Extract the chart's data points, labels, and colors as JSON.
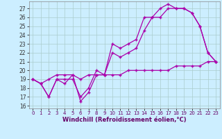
{
  "xlabel": "Windchill (Refroidissement éolien,°C)",
  "bg_color": "#cceeff",
  "grid_color": "#aacccc",
  "line_color": "#aa00aa",
  "xlim": [
    -0.5,
    23.5
  ],
  "ylim": [
    15.7,
    27.8
  ],
  "yticks": [
    16,
    17,
    18,
    19,
    20,
    21,
    22,
    23,
    24,
    25,
    26,
    27
  ],
  "xticks": [
    0,
    1,
    2,
    3,
    4,
    5,
    6,
    7,
    8,
    9,
    10,
    11,
    12,
    13,
    14,
    15,
    16,
    17,
    18,
    19,
    20,
    21,
    22,
    23
  ],
  "series": [
    {
      "x": [
        0,
        1,
        2,
        3,
        4,
        5,
        6,
        7,
        8,
        9,
        10,
        11,
        12,
        13,
        14,
        15,
        16,
        17,
        18,
        19,
        20,
        21,
        22,
        23
      ],
      "y": [
        19,
        18.5,
        19,
        19.5,
        19.5,
        19.5,
        19,
        19.5,
        19.5,
        19.5,
        19.5,
        19.5,
        20,
        20,
        20,
        20,
        20,
        20,
        20.5,
        20.5,
        20.5,
        20.5,
        21,
        21
      ]
    },
    {
      "x": [
        0,
        1,
        2,
        3,
        4,
        5,
        6,
        7,
        8,
        9,
        10,
        11,
        12,
        13,
        14,
        15,
        16,
        17,
        18,
        19,
        20,
        21,
        22,
        23
      ],
      "y": [
        19,
        18.5,
        17,
        19,
        18.5,
        19.5,
        16.5,
        17.5,
        19.5,
        19.5,
        22,
        21.5,
        22,
        22.5,
        24.5,
        26,
        26,
        27,
        27,
        27,
        26.5,
        25,
        22,
        21
      ]
    },
    {
      "x": [
        0,
        1,
        2,
        3,
        4,
        5,
        6,
        7,
        8,
        9,
        10,
        11,
        12,
        13,
        14,
        15,
        16,
        17,
        18,
        19,
        20,
        21,
        22,
        23
      ],
      "y": [
        19,
        18.5,
        17,
        19,
        19,
        19,
        17,
        18,
        20,
        19.5,
        23,
        22.5,
        23,
        23.5,
        26,
        26,
        27,
        27.5,
        27,
        27,
        26.5,
        25,
        22,
        21
      ]
    }
  ]
}
